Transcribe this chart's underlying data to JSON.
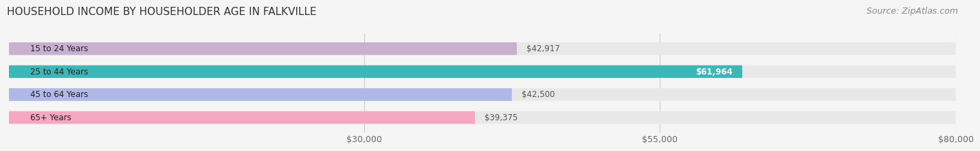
{
  "title": "HOUSEHOLD INCOME BY HOUSEHOLDER AGE IN FALKVILLE",
  "source": "Source: ZipAtlas.com",
  "categories": [
    "15 to 24 Years",
    "25 to 44 Years",
    "45 to 64 Years",
    "65+ Years"
  ],
  "values": [
    42917,
    61964,
    42500,
    39375
  ],
  "bar_colors": [
    "#c9afd0",
    "#3ab8b8",
    "#b0b8e8",
    "#f5a8c0"
  ],
  "bar_bg_color": "#e8e8e8",
  "label_colors": [
    "#555555",
    "#ffffff",
    "#555555",
    "#555555"
  ],
  "xlim": [
    0,
    80000
  ],
  "xticks": [
    30000,
    55000,
    80000
  ],
  "xticklabels": [
    "$30,000",
    "$55,000",
    "$80,000"
  ],
  "bar_height": 0.55,
  "title_fontsize": 11,
  "source_fontsize": 9,
  "tick_fontsize": 9,
  "category_fontsize": 8.5,
  "value_fontsize": 8.5,
  "fig_bg": "#f5f5f5"
}
